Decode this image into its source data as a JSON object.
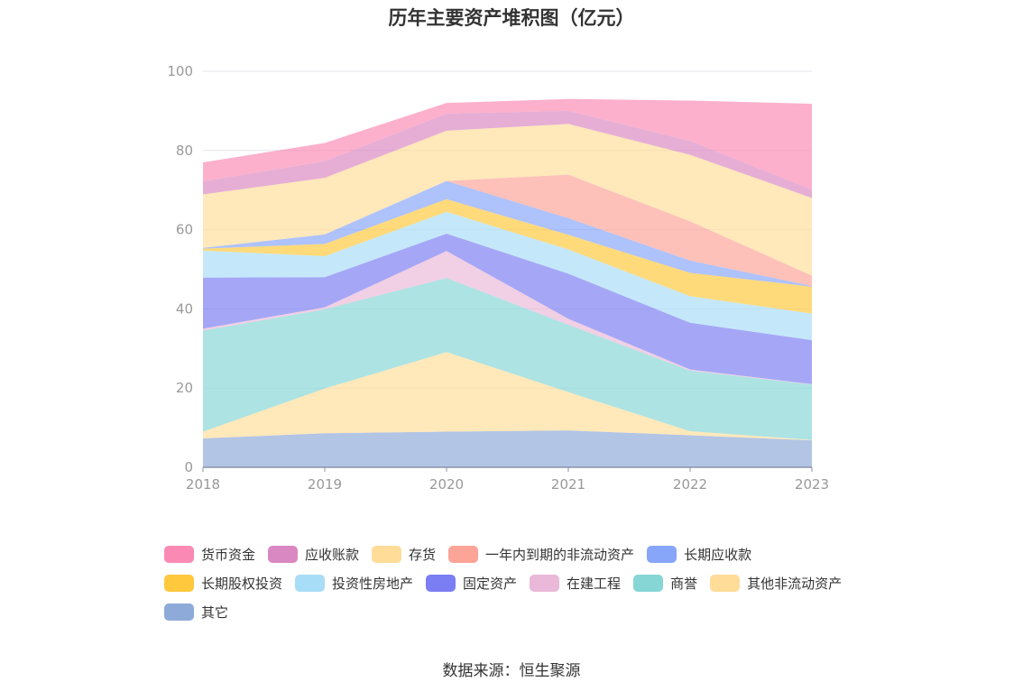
{
  "chart_data": {
    "type": "area",
    "title": "历年主要资产堆积图（亿元）",
    "x": [
      "2018",
      "2019",
      "2020",
      "2021",
      "2022",
      "2023"
    ],
    "ylim": [
      0,
      100
    ],
    "yticks": [
      0,
      20,
      40,
      60,
      80,
      100
    ],
    "stacked": true,
    "grid": true,
    "legend_position": "bottom",
    "series": [
      {
        "name": "其它",
        "color": "#8eaad8",
        "values": [
          7.3,
          8.6,
          9.0,
          9.3,
          8.1,
          6.8
        ]
      },
      {
        "name": "其他非流动资产",
        "color": "#ffdd99",
        "values": [
          1.7,
          11.3,
          20.1,
          9.7,
          1.0,
          0.1
        ]
      },
      {
        "name": "商誉",
        "color": "#86d6d6",
        "values": [
          25.5,
          20.0,
          18.7,
          17.0,
          15.3,
          14.0
        ]
      },
      {
        "name": "在建工程",
        "color": "#eab8d8",
        "values": [
          0.5,
          0.5,
          6.8,
          1.5,
          0.3,
          0.1
        ]
      },
      {
        "name": "固定资产",
        "color": "#7b7ef2",
        "values": [
          12.9,
          7.6,
          4.4,
          11.4,
          11.8,
          11.1
        ]
      },
      {
        "name": "投资性房地产",
        "color": "#a8ddf7",
        "values": [
          6.8,
          5.3,
          5.5,
          6.1,
          6.7,
          6.7
        ]
      },
      {
        "name": "长期股权投资",
        "color": "#ffc83d",
        "values": [
          0.5,
          3.1,
          3.2,
          3.7,
          5.9,
          6.8
        ]
      },
      {
        "name": "长期应收款",
        "color": "#87a5f9",
        "values": [
          0.2,
          2.4,
          4.6,
          4.2,
          3.1,
          0.2
        ]
      },
      {
        "name": "一年内到期的非流动资产",
        "color": "#fca498",
        "values": [
          0.0,
          0.0,
          0.0,
          11.0,
          9.9,
          2.6
        ]
      },
      {
        "name": "存货",
        "color": "#ffdd99",
        "values": [
          13.5,
          14.3,
          12.7,
          12.8,
          16.8,
          19.6
        ]
      },
      {
        "name": "应收账款",
        "color": "#da88c1",
        "values": [
          3.3,
          4.2,
          4.3,
          3.3,
          3.5,
          2.1
        ]
      },
      {
        "name": "货币资金",
        "color": "#fa8ab4",
        "values": [
          4.8,
          4.6,
          2.7,
          3.0,
          10.2,
          21.7
        ]
      }
    ],
    "legend_order": [
      "货币资金",
      "应收账款",
      "存货",
      "一年内到期的非流动资产",
      "长期应收款",
      "长期股权投资",
      "投资性房地产",
      "固定资产",
      "在建工程",
      "商誉",
      "其他非流动资产",
      "其它"
    ]
  },
  "source_text": "数据来源：恒生聚源"
}
